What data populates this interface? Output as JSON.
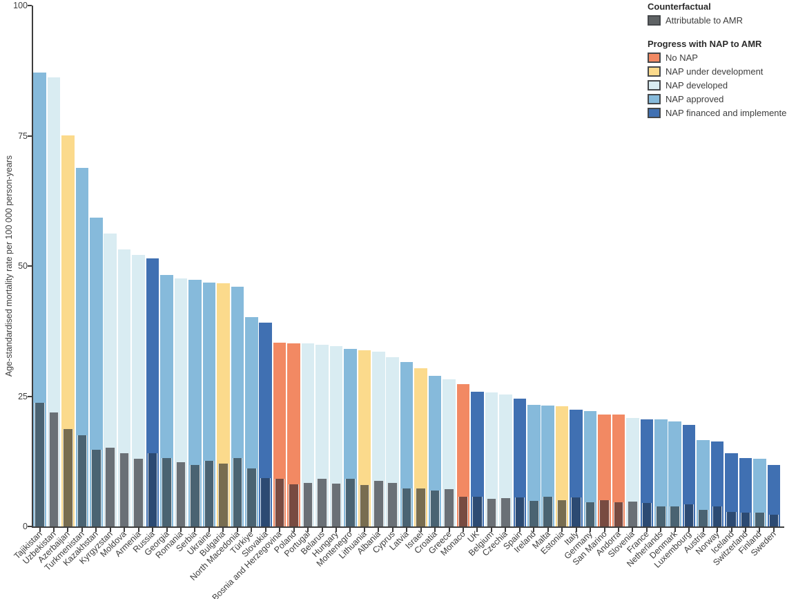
{
  "chart_data": {
    "type": "bar",
    "stacked": true,
    "title": "",
    "ylabel": "Age-standardised mortality rate per 100 000 person-years",
    "xlabel": "",
    "ylim": [
      0,
      100
    ],
    "yticks": [
      0,
      25,
      50,
      75,
      100
    ],
    "grid": false,
    "legend_position": "top-right",
    "legend": {
      "counterfactual_title": "Counterfactual",
      "attributable_label": "Attributable to AMR",
      "attributable_chip_color": "#5f6365",
      "nap_title": "Progress with NAP to AMR",
      "categories": [
        {
          "id": "no_nap",
          "label": "No NAP",
          "color": "#f28963",
          "attributable_color": "#784b41"
        },
        {
          "id": "under_development",
          "label": "NAP under development",
          "color": "#fbda8c",
          "attributable_color": "#786d50"
        },
        {
          "id": "developed",
          "label": "NAP developed",
          "color": "#d9ecf2",
          "attributable_color": "#6a7076"
        },
        {
          "id": "approved",
          "label": "NAP approved",
          "color": "#86badb",
          "attributable_color": "#4a6372"
        },
        {
          "id": "financed",
          "label": "NAP financed and implemented",
          "color": "#4070b2",
          "attributable_color": "#2c4a72"
        }
      ]
    },
    "series_semantics": "counterfactual = full bar height; attributable = dark lower segment",
    "countries": [
      {
        "name": "Tajikistan",
        "category": "approved",
        "counterfactual": 87.2,
        "attributable": 23.7
      },
      {
        "name": "Uzbekistan",
        "category": "developed",
        "counterfactual": 86.3,
        "attributable": 21.9
      },
      {
        "name": "Azerbaijan",
        "category": "under_development",
        "counterfactual": 75.1,
        "attributable": 18.7
      },
      {
        "name": "Turkmenistan",
        "category": "approved",
        "counterfactual": 68.8,
        "attributable": 17.5
      },
      {
        "name": "Kazakhstan",
        "category": "approved",
        "counterfactual": 59.3,
        "attributable": 14.7
      },
      {
        "name": "Kyrgyzstan",
        "category": "developed",
        "counterfactual": 56.2,
        "attributable": 15.1
      },
      {
        "name": "Moldova",
        "category": "developed",
        "counterfactual": 53.2,
        "attributable": 14.1
      },
      {
        "name": "Armenia",
        "category": "developed",
        "counterfactual": 52.1,
        "attributable": 13.0
      },
      {
        "name": "Russia",
        "category": "financed",
        "counterfactual": 51.5,
        "attributable": 14.0
      },
      {
        "name": "Georgia",
        "category": "approved",
        "counterfactual": 48.3,
        "attributable": 13.1
      },
      {
        "name": "Romania",
        "category": "developed",
        "counterfactual": 47.6,
        "attributable": 12.3
      },
      {
        "name": "Serbia",
        "category": "approved",
        "counterfactual": 47.4,
        "attributable": 11.8
      },
      {
        "name": "Ukraine",
        "category": "approved",
        "counterfactual": 46.9,
        "attributable": 12.6
      },
      {
        "name": "Bulgaria",
        "category": "under_development",
        "counterfactual": 46.7,
        "attributable": 12.1
      },
      {
        "name": "North Macedonia",
        "category": "approved",
        "counterfactual": 46.1,
        "attributable": 13.1
      },
      {
        "name": "Türkiye",
        "category": "approved",
        "counterfactual": 40.2,
        "attributable": 11.2
      },
      {
        "name": "Slovakia",
        "category": "financed",
        "counterfactual": 39.2,
        "attributable": 9.3
      },
      {
        "name": "Bosnia and Herzegovina",
        "category": "no_nap",
        "counterfactual": 35.3,
        "attributable": 9.1
      },
      {
        "name": "Poland",
        "category": "no_nap",
        "counterfactual": 35.2,
        "attributable": 8.1
      },
      {
        "name": "Portugal",
        "category": "developed",
        "counterfactual": 35.1,
        "attributable": 8.3
      },
      {
        "name": "Belarus",
        "category": "developed",
        "counterfactual": 34.9,
        "attributable": 9.2
      },
      {
        "name": "Hungary",
        "category": "developed",
        "counterfactual": 34.6,
        "attributable": 8.2
      },
      {
        "name": "Montenegro",
        "category": "approved",
        "counterfactual": 34.1,
        "attributable": 9.2
      },
      {
        "name": "Lithuania",
        "category": "under_development",
        "counterfactual": 33.8,
        "attributable": 8.0
      },
      {
        "name": "Albania",
        "category": "developed",
        "counterfactual": 33.6,
        "attributable": 8.8
      },
      {
        "name": "Cyprus",
        "category": "developed",
        "counterfactual": 32.5,
        "attributable": 8.3
      },
      {
        "name": "Latvia",
        "category": "approved",
        "counterfactual": 31.6,
        "attributable": 7.3
      },
      {
        "name": "Israel",
        "category": "under_development",
        "counterfactual": 30.4,
        "attributable": 7.3
      },
      {
        "name": "Croatia",
        "category": "approved",
        "counterfactual": 28.9,
        "attributable": 6.9
      },
      {
        "name": "Greece",
        "category": "developed",
        "counterfactual": 28.3,
        "attributable": 7.2
      },
      {
        "name": "Monaco",
        "category": "no_nap",
        "counterfactual": 27.3,
        "attributable": 5.7
      },
      {
        "name": "UK",
        "category": "financed",
        "counterfactual": 25.9,
        "attributable": 5.7
      },
      {
        "name": "Belgium",
        "category": "developed",
        "counterfactual": 25.8,
        "attributable": 5.3
      },
      {
        "name": "Czechia",
        "category": "developed",
        "counterfactual": 25.3,
        "attributable": 5.4
      },
      {
        "name": "Spain",
        "category": "financed",
        "counterfactual": 24.5,
        "attributable": 5.6
      },
      {
        "name": "Ireland",
        "category": "approved",
        "counterfactual": 23.3,
        "attributable": 4.9
      },
      {
        "name": "Malta",
        "category": "approved",
        "counterfactual": 23.2,
        "attributable": 5.7
      },
      {
        "name": "Estonia",
        "category": "under_development",
        "counterfactual": 23.1,
        "attributable": 5.0
      },
      {
        "name": "Italy",
        "category": "financed",
        "counterfactual": 22.4,
        "attributable": 5.6
      },
      {
        "name": "Germany",
        "category": "approved",
        "counterfactual": 22.2,
        "attributable": 4.6
      },
      {
        "name": "San Marino",
        "category": "no_nap",
        "counterfactual": 21.5,
        "attributable": 5.0
      },
      {
        "name": "Andorra",
        "category": "no_nap",
        "counterfactual": 21.5,
        "attributable": 4.7
      },
      {
        "name": "Slovenia",
        "category": "developed",
        "counterfactual": 20.8,
        "attributable": 4.8
      },
      {
        "name": "France",
        "category": "financed",
        "counterfactual": 20.6,
        "attributable": 4.5
      },
      {
        "name": "Netherlands",
        "category": "approved",
        "counterfactual": 20.5,
        "attributable": 3.8
      },
      {
        "name": "Denmark",
        "category": "approved",
        "counterfactual": 20.2,
        "attributable": 3.9
      },
      {
        "name": "Luxembourg",
        "category": "financed",
        "counterfactual": 19.5,
        "attributable": 4.2
      },
      {
        "name": "Austria",
        "category": "approved",
        "counterfactual": 16.6,
        "attributable": 3.2
      },
      {
        "name": "Norway",
        "category": "financed",
        "counterfactual": 16.3,
        "attributable": 3.9
      },
      {
        "name": "Iceland",
        "category": "financed",
        "counterfactual": 14.0,
        "attributable": 2.8
      },
      {
        "name": "Switzerland",
        "category": "financed",
        "counterfactual": 13.2,
        "attributable": 2.7
      },
      {
        "name": "Finland",
        "category": "approved",
        "counterfactual": 13.0,
        "attributable": 2.7
      },
      {
        "name": "Sweden",
        "category": "financed",
        "counterfactual": 11.8,
        "attributable": 2.3
      }
    ]
  }
}
